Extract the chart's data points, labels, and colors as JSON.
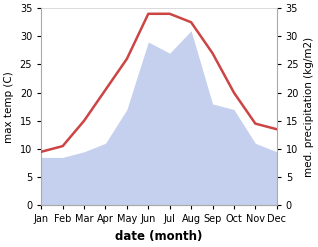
{
  "months": [
    "Jan",
    "Feb",
    "Mar",
    "Apr",
    "May",
    "Jun",
    "Jul",
    "Aug",
    "Sep",
    "Oct",
    "Nov",
    "Dec"
  ],
  "temperature": [
    9.5,
    10.5,
    15.0,
    20.5,
    26.0,
    34.0,
    34.0,
    32.5,
    27.0,
    20.0,
    14.5,
    13.5
  ],
  "precipitation": [
    8.5,
    8.5,
    9.5,
    11.0,
    17.0,
    29.0,
    27.0,
    31.0,
    18.0,
    17.0,
    11.0,
    9.5
  ],
  "temp_color": "#cc4444",
  "precip_color": "#c5d0ee",
  "background_color": "#ffffff",
  "ylim": [
    0,
    35
  ],
  "xlabel": "date (month)",
  "ylabel_left": "max temp (C)",
  "ylabel_right": "med. precipitation (kg/m2)",
  "label_fontsize": 7.5,
  "tick_fontsize": 7.0,
  "xlabel_fontsize": 8.5
}
